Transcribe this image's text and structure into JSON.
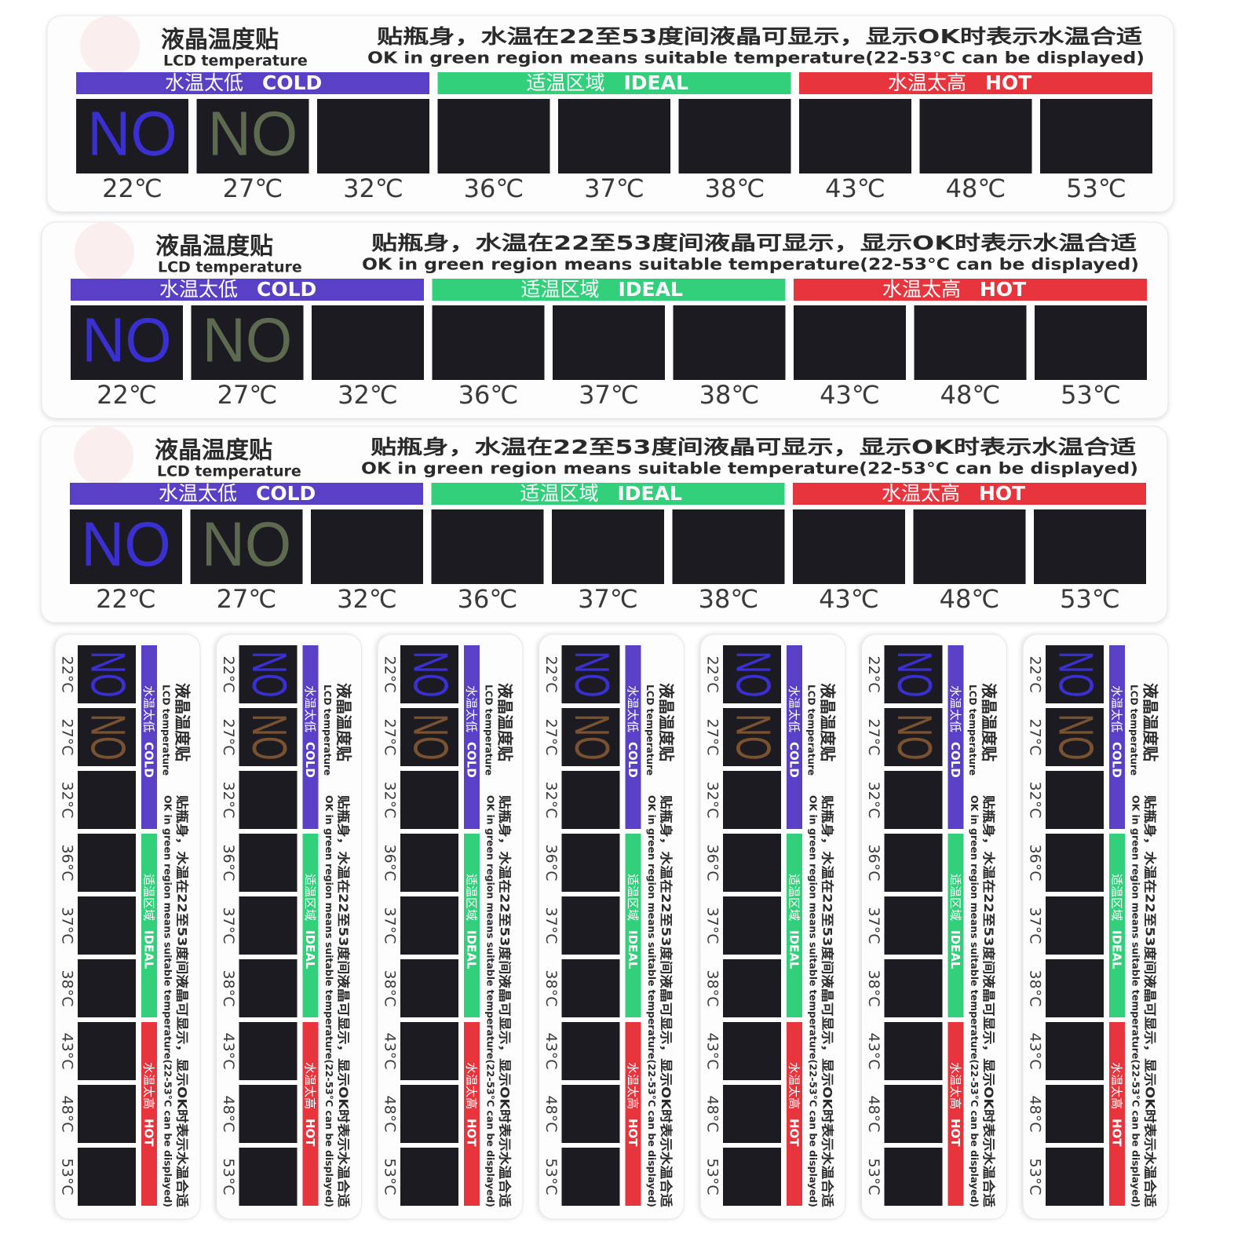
{
  "sticker": {
    "title_cn": "液晶温度贴",
    "title_en": "LCD temperature",
    "note_cn": "贴瓶身，水温在22至53度间液晶可显示，显示OK时表示水温合适",
    "note_en": "OK in green region means suitable temperature(22-53°C can be displayed)",
    "zones": [
      {
        "cn": "水温太低",
        "en": "COLD",
        "color": "#5a40c6"
      },
      {
        "cn": "适温区域",
        "en": "IDEAL",
        "color": "#33d07c"
      },
      {
        "cn": "水温太高",
        "en": "HOT",
        "color": "#e8343c"
      }
    ],
    "display_text": "NO",
    "wide_labels": [
      "22℃",
      "27℃",
      "32℃",
      "36℃",
      "37℃",
      "38℃",
      "43℃",
      "48℃",
      "53℃"
    ],
    "tall_labels": [
      "22°C",
      "27°C",
      "32°C",
      "36°C",
      "37°C",
      "38°C",
      "43°C",
      "48°C",
      "53°C"
    ]
  }
}
